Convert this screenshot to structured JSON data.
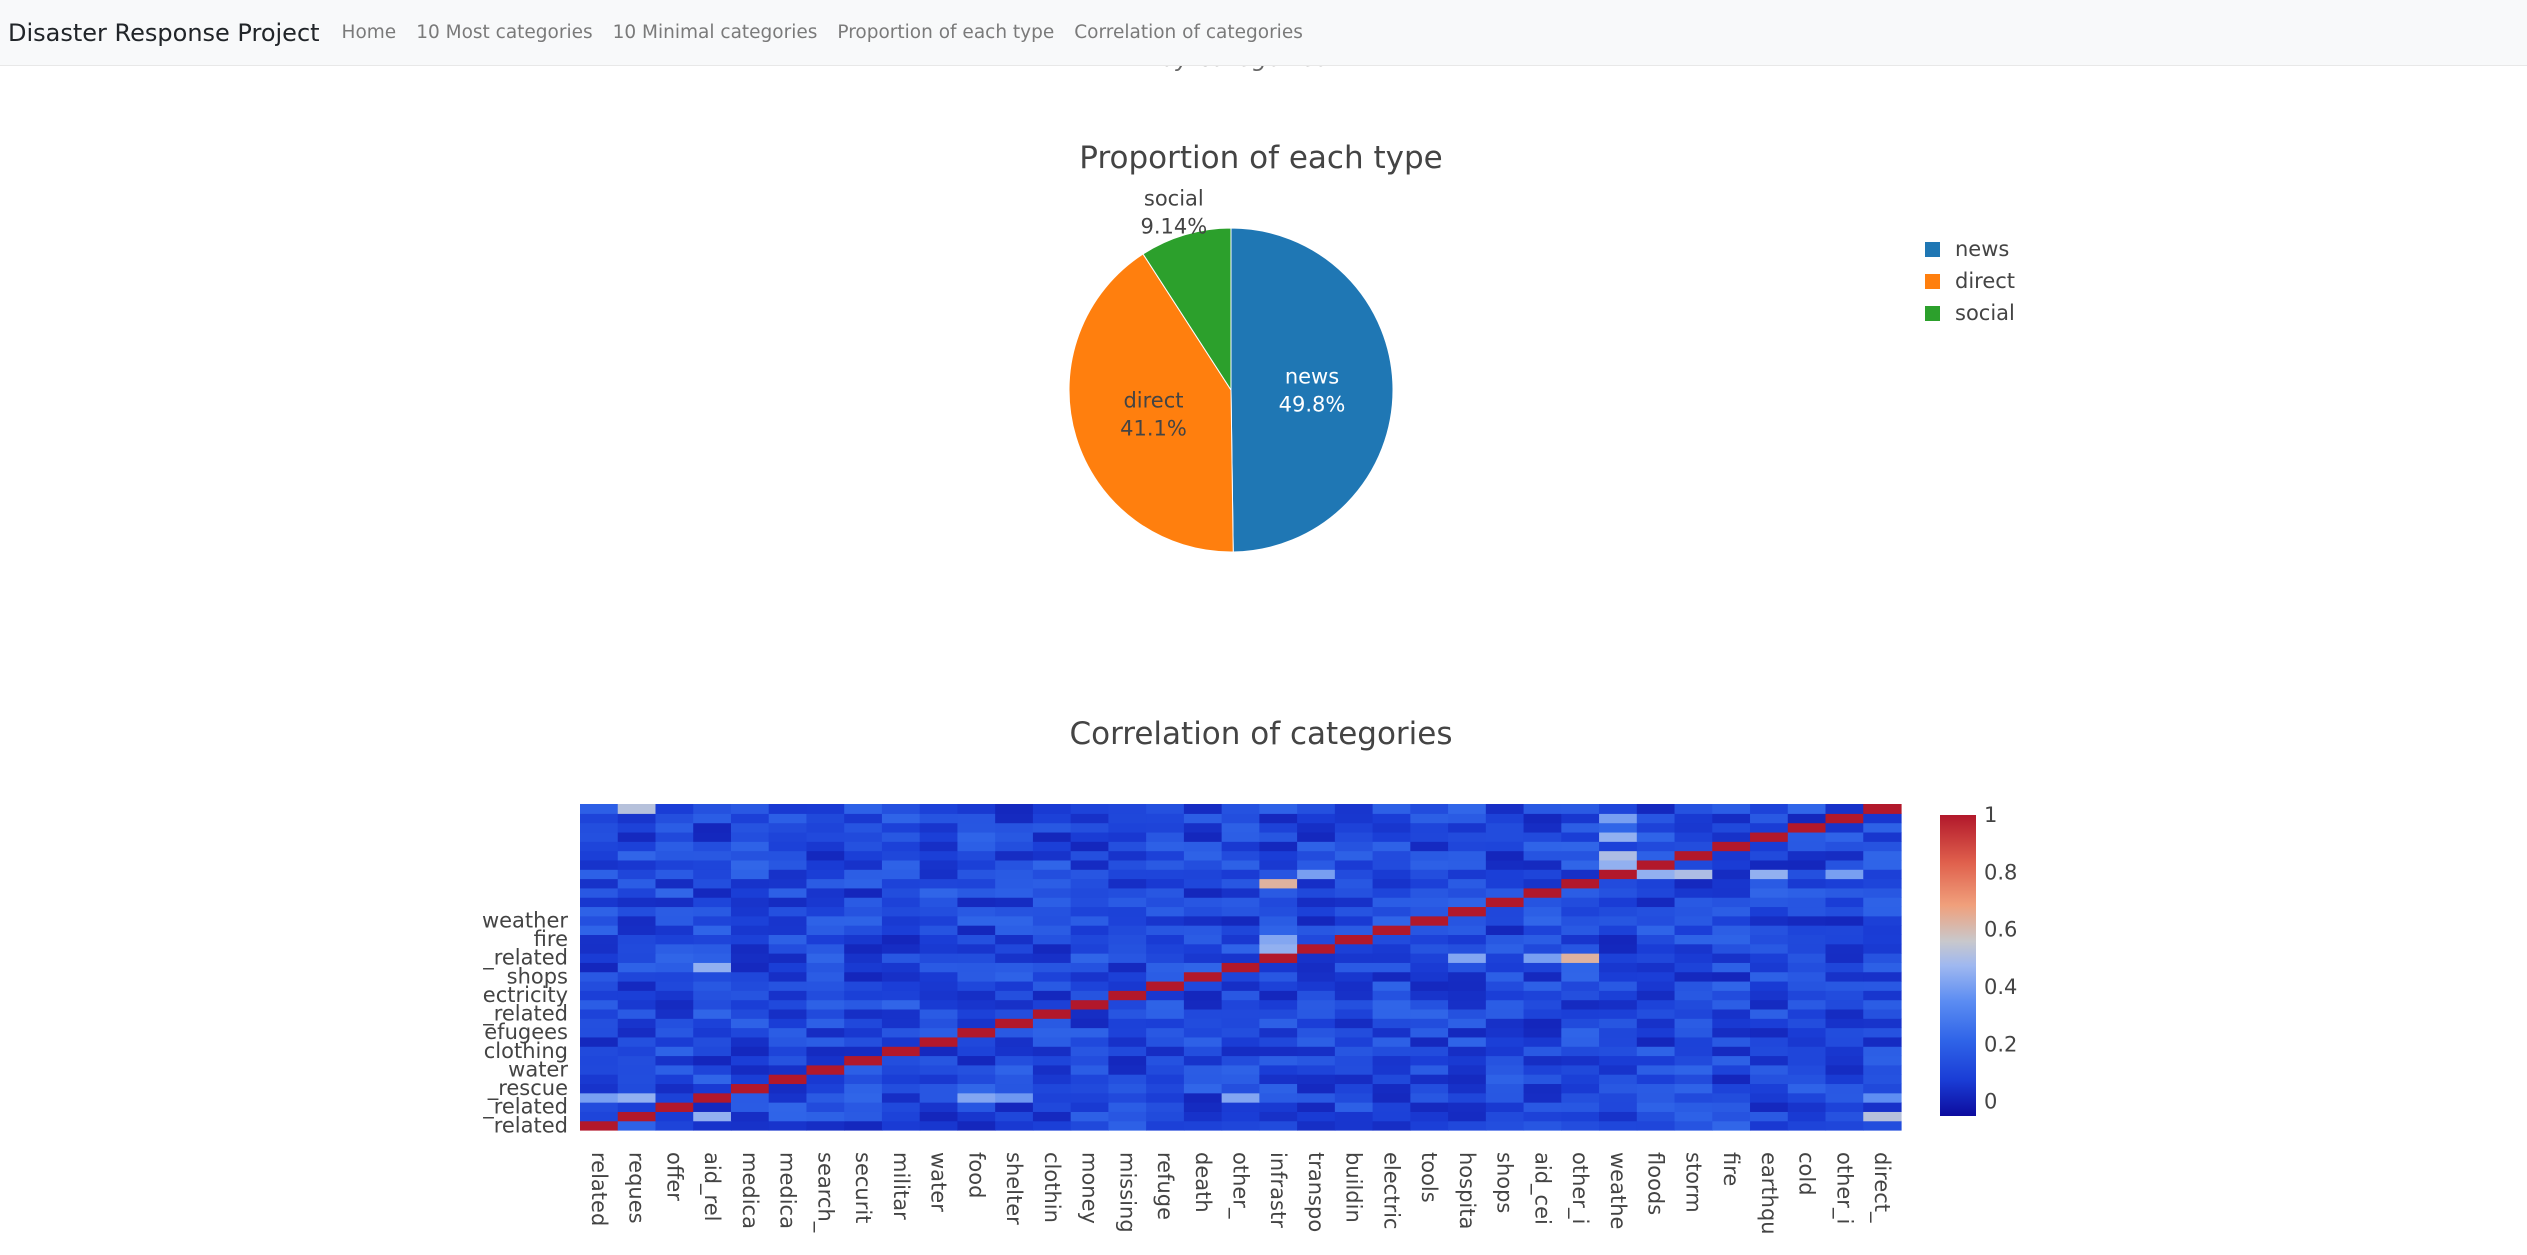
{
  "navbar": {
    "brand": "Disaster Response Project",
    "links": [
      "Home",
      "10 Most categories",
      "10 Minimal categories",
      "Proportion of each type",
      "Correlation of categories"
    ]
  },
  "previous_chart_fragment": "by categories",
  "colors": {
    "navbar_bg": "#f8f9fa",
    "news": "#1f77b4",
    "direct": "#ff7f0e",
    "social": "#2ca02c",
    "colorscale": [
      "#0d0c9e",
      "#1a3dd6",
      "#2f64e8",
      "#5b8cf2",
      "#9fb8f0",
      "#c8c8cc",
      "#f0a07c",
      "#e0614d",
      "#b2182b"
    ]
  },
  "chart_data": [
    {
      "type": "pie",
      "title": "Proportion of each type",
      "labels": [
        "news",
        "direct",
        "social"
      ],
      "percent_labels": [
        "49.8%",
        "41.1%",
        "9.14%"
      ],
      "values": [
        49.8,
        41.1,
        9.14
      ],
      "colors": [
        "#1f77b4",
        "#ff7f0e",
        "#2ca02c"
      ],
      "legend": [
        "news",
        "direct",
        "social"
      ],
      "legend_position": "top-right"
    },
    {
      "type": "heatmap",
      "title": "Correlation of categories",
      "x_categories": [
        "related",
        "request",
        "offer",
        "aid_related",
        "medical_help",
        "medical_products",
        "search_and_rescue",
        "security",
        "military",
        "water",
        "food",
        "shelter",
        "clothing",
        "money",
        "missing_people",
        "refugees",
        "death",
        "other_aid",
        "infrastructure_related",
        "transport",
        "buildings",
        "electricity",
        "tools",
        "hospitals",
        "shops",
        "aid_centers",
        "other_infrastructure",
        "weather_related",
        "floods",
        "storm",
        "fire",
        "earthquake",
        "cold",
        "other_weather",
        "direct_report"
      ],
      "x_tick_text": [
        "related",
        "reques",
        "offer",
        "aid_rel",
        "medica",
        "medica",
        "search_",
        "securit",
        "militar",
        "water",
        "food",
        "shelter",
        "clothin",
        "money",
        "missing",
        "refuge",
        "death",
        "other_",
        "infrastr",
        "transpo",
        "buildin",
        "electric",
        "tools",
        "hospita",
        "shops",
        "aid_cei",
        "other_i",
        "weathe",
        "floods",
        "storm",
        "fire",
        "earthqu",
        "cold",
        "other_i",
        "direct_"
      ],
      "y_tick_text": [
        "related",
        "_related",
        "_rescue",
        "water",
        "clothing",
        "efugees",
        "_related",
        "ectricity",
        "shops",
        "_related",
        "fire",
        "weather"
      ],
      "colorbar_ticks": [
        "0",
        "0.2",
        "0.4",
        "0.6",
        "0.8",
        "1"
      ],
      "zmin": -0.05,
      "zmax": 1,
      "diagonal": 1,
      "high_cells": [
        {
          "x": "aid_related",
          "y": "request",
          "z": 0.45
        },
        {
          "x": "aid_related",
          "y": "other_aid",
          "z": 0.45
        },
        {
          "x": "related",
          "y": "aid_related",
          "z": 0.4
        },
        {
          "x": "request",
          "y": "aid_related",
          "z": 0.45
        },
        {
          "x": "food",
          "y": "aid_related",
          "z": 0.42
        },
        {
          "x": "shelter",
          "y": "aid_related",
          "z": 0.38
        },
        {
          "x": "other_aid",
          "y": "aid_related",
          "z": 0.42
        },
        {
          "x": "direct_report",
          "y": "aid_related",
          "z": 0.35
        },
        {
          "x": "direct_report",
          "y": "request",
          "z": 0.55
        },
        {
          "x": "request",
          "y": "direct_report",
          "z": 0.55
        },
        {
          "x": "weather_related",
          "y": "floods",
          "z": 0.45
        },
        {
          "x": "weather_related",
          "y": "storm",
          "z": 0.52
        },
        {
          "x": "weather_related",
          "y": "earthquake",
          "z": 0.45
        },
        {
          "x": "weather_related",
          "y": "other_weather",
          "z": 0.4
        },
        {
          "x": "floods",
          "y": "weather_related",
          "z": 0.45
        },
        {
          "x": "storm",
          "y": "weather_related",
          "z": 0.52
        },
        {
          "x": "earthquake",
          "y": "weather_related",
          "z": 0.45
        },
        {
          "x": "other_weather",
          "y": "weather_related",
          "z": 0.4
        },
        {
          "x": "infrastructure_related",
          "y": "other_infrastructure",
          "z": 0.68
        },
        {
          "x": "other_infrastructure",
          "y": "infrastructure_related",
          "z": 0.68
        },
        {
          "x": "infrastructure_related",
          "y": "transport",
          "z": 0.45
        },
        {
          "x": "infrastructure_related",
          "y": "buildings",
          "z": 0.42
        },
        {
          "x": "hospitals",
          "y": "infrastructure_related",
          "z": 0.42
        },
        {
          "x": "aid_centers",
          "y": "infrastructure_related",
          "z": 0.4
        },
        {
          "x": "transport",
          "y": "weather_related",
          "z": 0.4
        }
      ]
    }
  ]
}
